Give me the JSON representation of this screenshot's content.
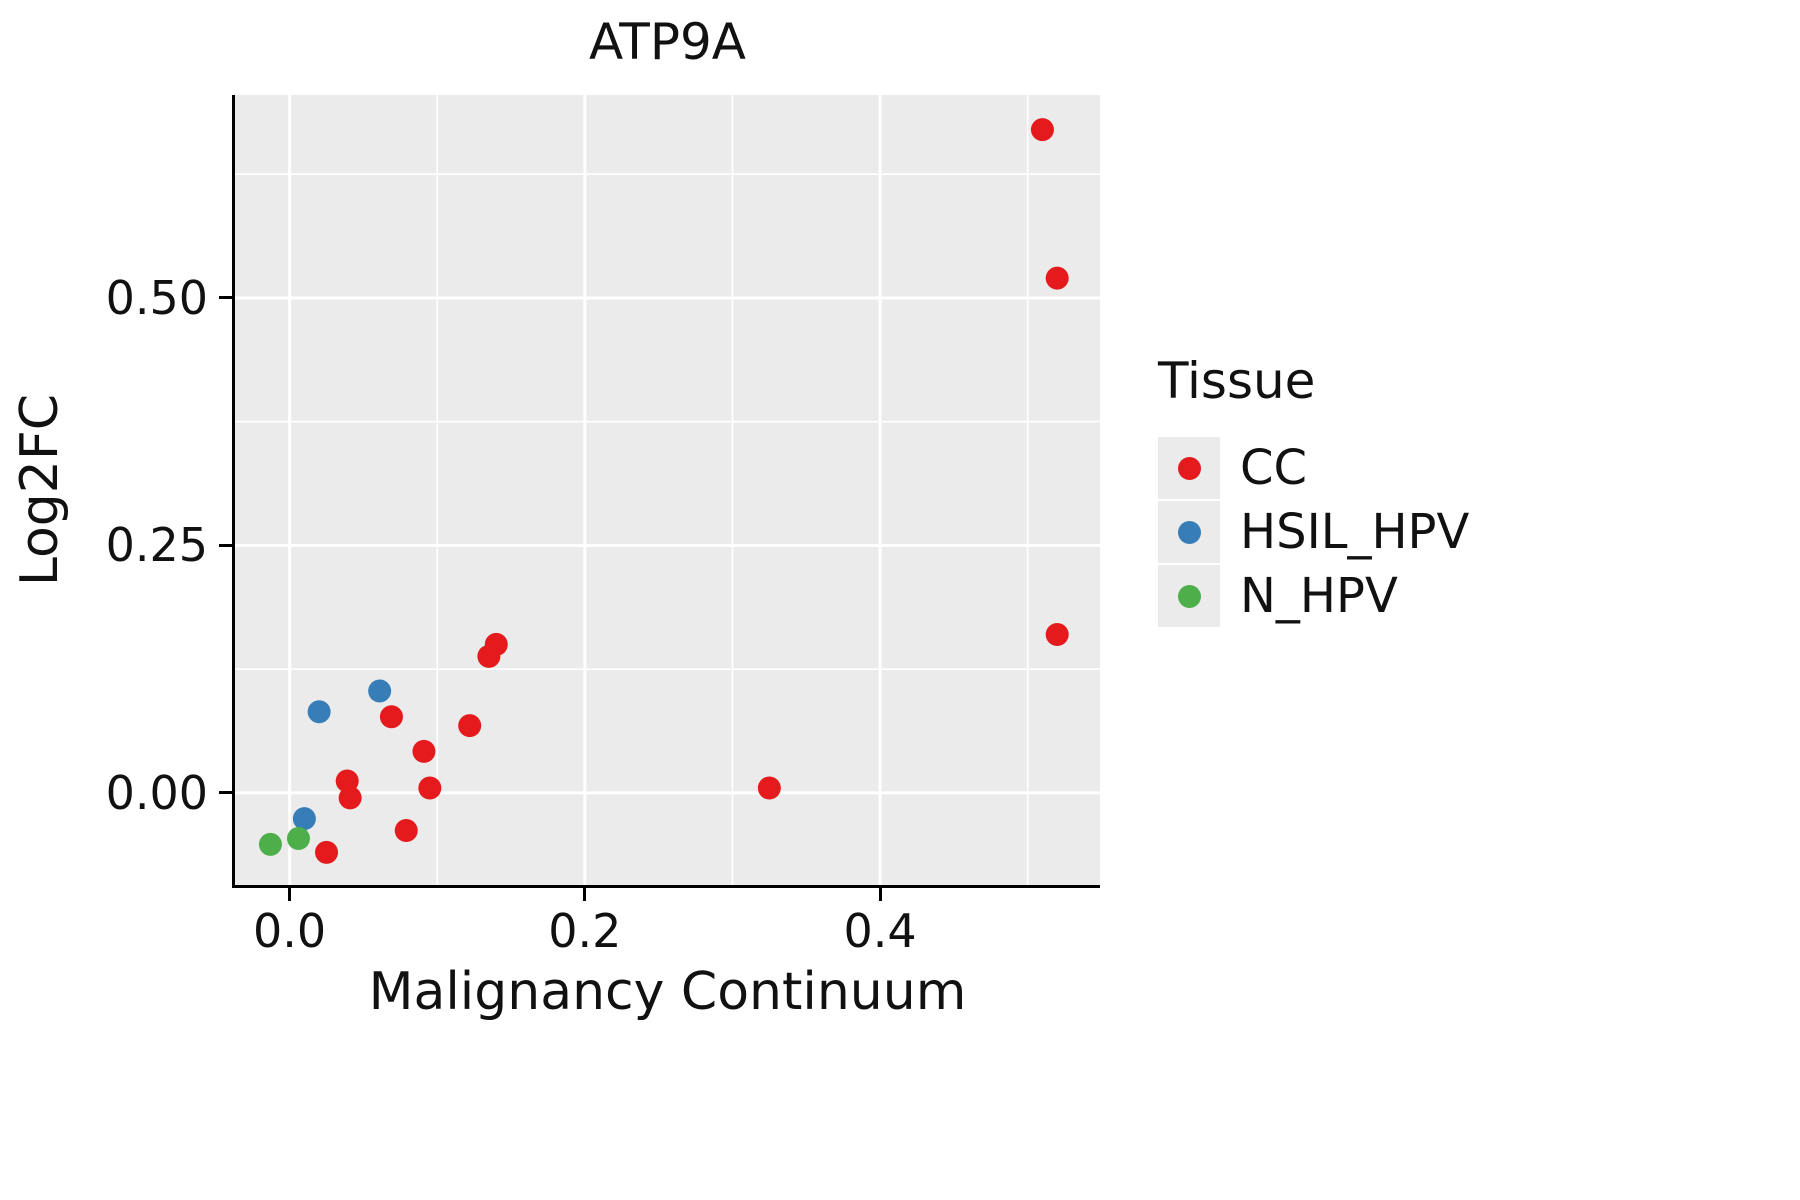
{
  "chart_data": {
    "type": "scatter",
    "title": "ATP9A",
    "xlabel": "Malignancy Continuum",
    "ylabel": "Log2FC",
    "legend_title": "Tissue",
    "grid": true,
    "legend_position": "right",
    "panel_bg": "#EBEBEB",
    "grid_color": "#FFFFFF",
    "xlim": [
      -0.037,
      0.549
    ],
    "ylim": [
      -0.093,
      0.705
    ],
    "xticks": [
      0.0,
      0.2,
      0.4
    ],
    "xtick_labels": [
      "0.0",
      "0.2",
      "0.4"
    ],
    "yticks": [
      0.0,
      0.25,
      0.5
    ],
    "ytick_labels": [
      "0.00",
      "0.25",
      "0.50"
    ],
    "x_minor": [
      0.1,
      0.3,
      0.5
    ],
    "y_minor": [
      0.125,
      0.375,
      0.625
    ],
    "series": [
      {
        "name": "CC",
        "color": "#E41A1C",
        "points": [
          [
            0.51,
            0.67
          ],
          [
            0.52,
            0.52
          ],
          [
            0.52,
            0.16
          ],
          [
            0.325,
            0.005
          ],
          [
            0.14,
            0.15
          ],
          [
            0.135,
            0.138
          ],
          [
            0.122,
            0.068
          ],
          [
            0.069,
            0.077
          ],
          [
            0.091,
            0.042
          ],
          [
            0.095,
            0.005
          ],
          [
            0.039,
            0.012
          ],
          [
            0.041,
            -0.005
          ],
          [
            0.079,
            -0.038
          ],
          [
            0.025,
            -0.06
          ]
        ]
      },
      {
        "name": "HSIL_HPV",
        "color": "#377EB8",
        "points": [
          [
            0.061,
            0.103
          ],
          [
            0.02,
            0.082
          ],
          [
            0.01,
            -0.026
          ]
        ]
      },
      {
        "name": "N_HPV",
        "color": "#4DAF4A",
        "points": [
          [
            -0.013,
            -0.052
          ],
          [
            0.006,
            -0.046
          ]
        ]
      }
    ]
  }
}
